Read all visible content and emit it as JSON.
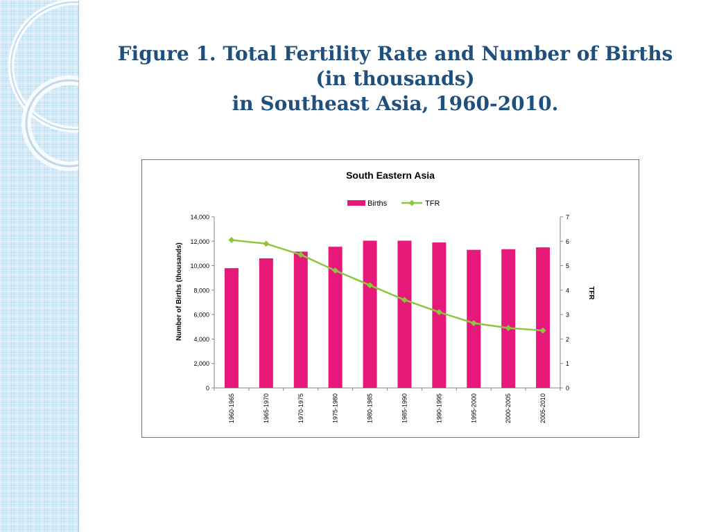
{
  "slide": {
    "title_lines": [
      "Figure 1. Total Fertility Rate and Number of Births",
      "(in thousands)",
      "in Southeast Asia, 1960-2010."
    ]
  },
  "chart_data": {
    "type": "bar",
    "title": "South Eastern Asia",
    "categories": [
      "1960-1965",
      "1965-1970",
      "1970-1975",
      "1975-1980",
      "1980-1985",
      "1985-1990",
      "1990-1995",
      "1995-2000",
      "2000-2005",
      "2005-2010"
    ],
    "series": [
      {
        "name": "Births",
        "type": "bar",
        "axis": "left",
        "color": "#e6197a",
        "values": [
          9800,
          10600,
          11150,
          11550,
          12050,
          12050,
          11900,
          11300,
          11350,
          11500
        ]
      },
      {
        "name": "TFR",
        "type": "line",
        "axis": "right",
        "color": "#8cc63f",
        "values": [
          6.05,
          5.9,
          5.45,
          4.8,
          4.2,
          3.6,
          3.1,
          2.65,
          2.45,
          2.35
        ]
      }
    ],
    "ylabel": "Number of Births (thousands)",
    "y2label": "TFR",
    "ylim": [
      0,
      14000
    ],
    "y2lim": [
      0,
      7
    ],
    "yticks": [
      "0",
      "2,000",
      "4,000",
      "6,000",
      "8,000",
      "10,000",
      "12,000",
      "14,000"
    ],
    "y2ticks": [
      "0",
      "1",
      "2",
      "3",
      "4",
      "5",
      "6",
      "7"
    ],
    "legend_position": "top",
    "grid": false
  }
}
